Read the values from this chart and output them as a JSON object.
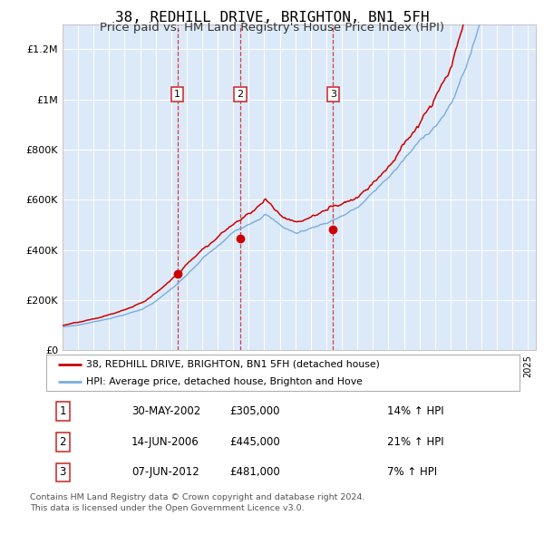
{
  "title": "38, REDHILL DRIVE, BRIGHTON, BN1 5FH",
  "subtitle": "Price paid vs. HM Land Registry's House Price Index (HPI)",
  "title_fontsize": 11.5,
  "subtitle_fontsize": 9.5,
  "plot_bg_color": "#dce9f8",
  "red_color": "#cc0000",
  "blue_color": "#7aaddc",
  "sale_dates": [
    2002.41,
    2006.45,
    2012.44
  ],
  "sale_prices": [
    305000,
    445000,
    481000
  ],
  "sale_labels": [
    "1",
    "2",
    "3"
  ],
  "legend_entries": [
    "38, REDHILL DRIVE, BRIGHTON, BN1 5FH (detached house)",
    "HPI: Average price, detached house, Brighton and Hove"
  ],
  "table_rows": [
    [
      "1",
      "30-MAY-2002",
      "£305,000",
      "14% ↑ HPI"
    ],
    [
      "2",
      "14-JUN-2006",
      "£445,000",
      "21% ↑ HPI"
    ],
    [
      "3",
      "07-JUN-2012",
      "£481,000",
      "7% ↑ HPI"
    ]
  ],
  "footer": "Contains HM Land Registry data © Crown copyright and database right 2024.\nThis data is licensed under the Open Government Licence v3.0.",
  "ylim": [
    0,
    1300000
  ],
  "yticks": [
    0,
    200000,
    400000,
    600000,
    800000,
    1000000,
    1200000
  ],
  "ytick_labels": [
    "£0",
    "£200K",
    "£400K",
    "£600K",
    "£800K",
    "£1M",
    "£1.2M"
  ],
  "xstart": 1995,
  "xend": 2025
}
